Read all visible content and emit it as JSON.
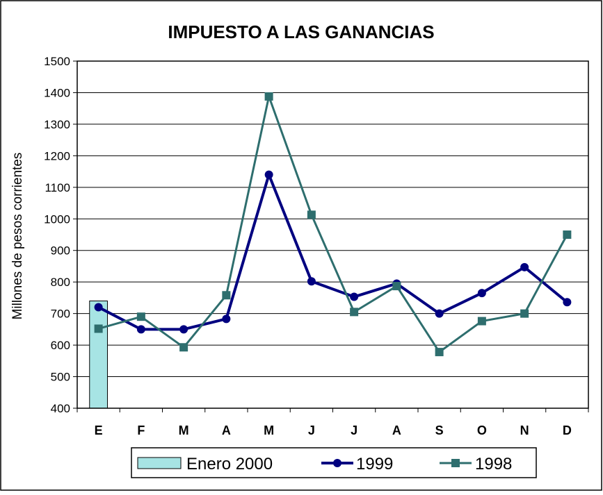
{
  "chart_data": {
    "type": "line",
    "title": "IMPUESTO A LAS GANANCIAS",
    "xlabel": "",
    "ylabel": "Millones de pesos corrientes",
    "categories": [
      "E",
      "F",
      "M",
      "A",
      "M",
      "J",
      "J",
      "A",
      "S",
      "O",
      "N",
      "D"
    ],
    "ylim": [
      400,
      1500
    ],
    "yticks": [
      400,
      500,
      600,
      700,
      800,
      900,
      1000,
      1100,
      1200,
      1300,
      1400,
      1500
    ],
    "grid": true,
    "legend_position": "bottom",
    "series": [
      {
        "name": "Enero 2000",
        "kind": "bar",
        "color": "#a7e4e4",
        "values": [
          740,
          null,
          null,
          null,
          null,
          null,
          null,
          null,
          null,
          null,
          null,
          null
        ]
      },
      {
        "name": "1999",
        "kind": "line",
        "marker": "circle",
        "color": "#000080",
        "values": [
          720,
          650,
          650,
          683,
          1140,
          802,
          753,
          795,
          700,
          765,
          847,
          736
        ]
      },
      {
        "name": "1998",
        "kind": "line",
        "marker": "square",
        "color": "#2e6e6e",
        "values": [
          652,
          690,
          593,
          758,
          1388,
          1013,
          705,
          787,
          578,
          676,
          700,
          950
        ]
      }
    ]
  }
}
